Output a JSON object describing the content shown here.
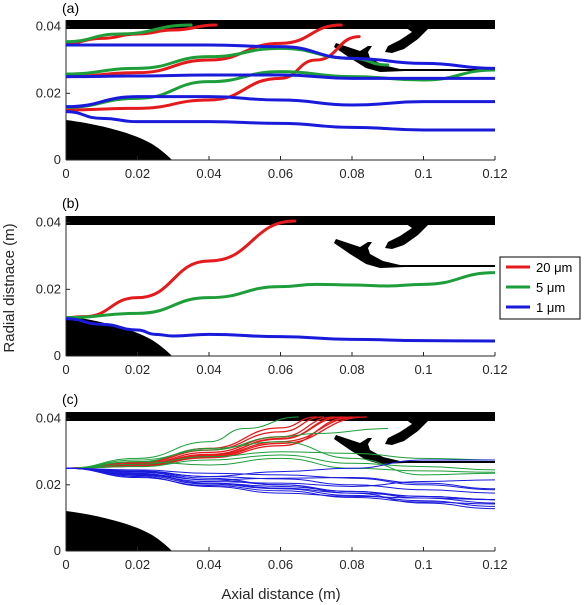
{
  "chart_data": {
    "type": "line",
    "xlabel": "Axial distance (m)",
    "ylabel": "Radial distnace (m)",
    "xlim": [
      0,
      0.12
    ],
    "ylim": [
      0,
      0.042
    ],
    "x_ticks": [
      "0",
      "0.02",
      "0.04",
      "0.06",
      "0.08",
      "0.1",
      "0.12"
    ],
    "y_ticks": [
      "0",
      "0.02",
      "0.04"
    ],
    "legend": {
      "placement": "right of panel (b)",
      "entries": [
        {
          "label": "20 μm",
          "color": "#e41a1c"
        },
        {
          "label": "5 μm",
          "color": "#1e9e3a"
        },
        {
          "label": "1 μm",
          "color": "#1a1adb"
        }
      ]
    },
    "colors": {
      "20um": "#e41a1c",
      "5um": "#1e9e3a",
      "1um": "#1a1adb",
      "geometry": "#000000"
    },
    "panels": [
      {
        "label": "(a)",
        "series": [
          {
            "size": "20um",
            "x": [
              0,
              0.01,
              0.02,
              0.03,
              0.042
            ],
            "y": [
              0.035,
              0.0365,
              0.0378,
              0.039,
              0.0405
            ]
          },
          {
            "size": "20um",
            "x": [
              0,
              0.02,
              0.04,
              0.06,
              0.077
            ],
            "y": [
              0.025,
              0.0262,
              0.03,
              0.035,
              0.0405
            ]
          },
          {
            "size": "20um",
            "x": [
              0,
              0.02,
              0.04,
              0.06,
              0.07,
              0.082
            ],
            "y": [
              0.015,
              0.0155,
              0.018,
              0.0245,
              0.03,
              0.037
            ]
          },
          {
            "size": "5um",
            "x": [
              0,
              0.015,
              0.035
            ],
            "y": [
              0.0355,
              0.0378,
              0.0405
            ]
          },
          {
            "size": "5um",
            "x": [
              0,
              0.02,
              0.04,
              0.06,
              0.08,
              0.09
            ],
            "y": [
              0.0258,
              0.0275,
              0.031,
              0.0335,
              0.0305,
              0.0285
            ]
          },
          {
            "size": "5um",
            "x": [
              0,
              0.02,
              0.04,
              0.06,
              0.08,
              0.1,
              0.12
            ],
            "y": [
              0.0158,
              0.0185,
              0.0235,
              0.0265,
              0.025,
              0.024,
              0.027
            ]
          },
          {
            "size": "1um",
            "x": [
              0,
              0.02,
              0.04,
              0.06,
              0.08,
              0.1,
              0.12
            ],
            "y": [
              0.0345,
              0.0345,
              0.0345,
              0.034,
              0.0305,
              0.029,
              0.0275
            ]
          },
          {
            "size": "1um",
            "x": [
              0,
              0.02,
              0.04,
              0.06,
              0.08,
              0.1,
              0.12
            ],
            "y": [
              0.025,
              0.0252,
              0.0255,
              0.0255,
              0.0245,
              0.0245,
              0.0245
            ]
          },
          {
            "size": "1um",
            "x": [
              0,
              0.02,
              0.04,
              0.06,
              0.08,
              0.1,
              0.12
            ],
            "y": [
              0.016,
              0.019,
              0.019,
              0.018,
              0.0165,
              0.0175,
              0.0175
            ]
          },
          {
            "size": "1um",
            "x": [
              0,
              0.01,
              0.02,
              0.04,
              0.06,
              0.08,
              0.1,
              0.12
            ],
            "y": [
              0.0145,
              0.0125,
              0.0115,
              0.0115,
              0.011,
              0.0098,
              0.009,
              0.009
            ]
          }
        ]
      },
      {
        "label": "(b)",
        "series": [
          {
            "size": "20um",
            "x": [
              0,
              0.005,
              0.02,
              0.04,
              0.064
            ],
            "y": [
              0.0115,
              0.0118,
              0.0175,
              0.0285,
              0.0405
            ]
          },
          {
            "size": "5um",
            "x": [
              0,
              0.02,
              0.04,
              0.06,
              0.07,
              0.08,
              0.09,
              0.1,
              0.12
            ],
            "y": [
              0.0115,
              0.0128,
              0.0175,
              0.0208,
              0.0215,
              0.0213,
              0.021,
              0.0215,
              0.025
            ]
          },
          {
            "size": "1um",
            "x": [
              0,
              0.01,
              0.02,
              0.025,
              0.03,
              0.04,
              0.06,
              0.08,
              0.1,
              0.12
            ],
            "y": [
              0.0112,
              0.0095,
              0.0078,
              0.0065,
              0.006,
              0.0065,
              0.0058,
              0.005,
              0.0046,
              0.0045
            ]
          }
        ]
      },
      {
        "label": "(c)",
        "series": [
          {
            "size": "20um",
            "x": [
              0,
              0.02,
              0.04,
              0.06,
              0.078
            ],
            "y": [
              0.025,
              0.026,
              0.029,
              0.034,
              0.0405
            ]
          },
          {
            "size": "20um",
            "x": [
              0,
              0.02,
              0.04,
              0.06,
              0.072
            ],
            "y": [
              0.025,
              0.0265,
              0.0305,
              0.036,
              0.0405
            ]
          },
          {
            "size": "20um",
            "x": [
              0,
              0.02,
              0.04,
              0.06,
              0.084
            ],
            "y": [
              0.025,
              0.0258,
              0.0285,
              0.0325,
              0.0405
            ]
          },
          {
            "size": "20um",
            "x": [
              0,
              0.02,
              0.04,
              0.06,
              0.075
            ],
            "y": [
              0.025,
              0.0262,
              0.0298,
              0.0345,
              0.0405
            ]
          },
          {
            "size": "20um",
            "x": [
              0,
              0.02,
              0.04,
              0.06,
              0.08
            ],
            "y": [
              0.025,
              0.0256,
              0.0282,
              0.0318,
              0.0405
            ]
          },
          {
            "size": "20um",
            "x": [
              0,
              0.02,
              0.04,
              0.06,
              0.07
            ],
            "y": [
              0.025,
              0.0268,
              0.031,
              0.0372,
              0.0405
            ]
          },
          {
            "size": "20um",
            "x": [
              0,
              0.02,
              0.04,
              0.06,
              0.077
            ],
            "y": [
              0.025,
              0.026,
              0.0292,
              0.0338,
              0.0405
            ]
          },
          {
            "size": "20um",
            "x": [
              0,
              0.02,
              0.04,
              0.06,
              0.082
            ],
            "y": [
              0.025,
              0.0257,
              0.0288,
              0.033,
              0.0405
            ]
          },
          {
            "size": "5um",
            "x": [
              0,
              0.02,
              0.04,
              0.05,
              0.065
            ],
            "y": [
              0.025,
              0.028,
              0.033,
              0.037,
              0.0405
            ]
          },
          {
            "size": "5um",
            "x": [
              0,
              0.02,
              0.04,
              0.06,
              0.08,
              0.1,
              0.12
            ],
            "y": [
              0.025,
              0.027,
              0.031,
              0.033,
              0.028,
              0.023,
              0.0235
            ]
          },
          {
            "size": "5um",
            "x": [
              0,
              0.02,
              0.04,
              0.06,
              0.07,
              0.09
            ],
            "y": [
              0.025,
              0.0275,
              0.0305,
              0.0345,
              0.0355,
              0.037
            ]
          },
          {
            "size": "5um",
            "x": [
              0,
              0.02,
              0.04,
              0.06,
              0.08,
              0.1,
              0.12
            ],
            "y": [
              0.025,
              0.0262,
              0.0285,
              0.03,
              0.0295,
              0.028,
              0.0275
            ]
          },
          {
            "size": "5um",
            "x": [
              0,
              0.02,
              0.04,
              0.06,
              0.08,
              0.1,
              0.12
            ],
            "y": [
              0.025,
              0.0255,
              0.0275,
              0.029,
              0.0265,
              0.0255,
              0.0245
            ]
          },
          {
            "size": "5um",
            "x": [
              0,
              0.02,
              0.04,
              0.06,
              0.08,
              0.1,
              0.12
            ],
            "y": [
              0.025,
              0.027,
              0.026,
              0.028,
              0.025,
              0.0242,
              0.0238
            ]
          },
          {
            "size": "1um",
            "x": [
              0,
              0.02,
              0.04,
              0.06,
              0.08,
              0.1,
              0.12
            ],
            "y": [
              0.025,
              0.024,
              0.0225,
              0.024,
              0.025,
              0.0275,
              0.0275
            ]
          },
          {
            "size": "1um",
            "x": [
              0,
              0.02,
              0.04,
              0.06,
              0.08,
              0.1,
              0.12
            ],
            "y": [
              0.025,
              0.023,
              0.021,
              0.0205,
              0.0195,
              0.021,
              0.0215
            ]
          },
          {
            "size": "1um",
            "x": [
              0,
              0.02,
              0.04,
              0.06,
              0.08,
              0.1,
              0.12
            ],
            "y": [
              0.025,
              0.0225,
              0.0195,
              0.0175,
              0.0165,
              0.016,
              0.0155
            ]
          },
          {
            "size": "1um",
            "x": [
              0,
              0.02,
              0.04,
              0.06,
              0.08,
              0.1,
              0.12
            ],
            "y": [
              0.025,
              0.024,
              0.022,
              0.02,
              0.018,
              0.016,
              0.0145
            ]
          },
          {
            "size": "1um",
            "x": [
              0,
              0.02,
              0.04,
              0.06,
              0.08,
              0.1,
              0.12
            ],
            "y": [
              0.025,
              0.0238,
              0.0215,
              0.02,
              0.0175,
              0.0165,
              0.0155
            ]
          },
          {
            "size": "1um",
            "x": [
              0,
              0.02,
              0.04,
              0.06,
              0.08,
              0.1,
              0.12
            ],
            "y": [
              0.025,
              0.0232,
              0.0205,
              0.019,
              0.0175,
              0.0145,
              0.0128
            ]
          },
          {
            "size": "1um",
            "x": [
              0,
              0.02,
              0.04,
              0.06,
              0.08,
              0.1,
              0.12
            ],
            "y": [
              0.025,
              0.0228,
              0.0202,
              0.0188,
              0.0168,
              0.0152,
              0.0135
            ]
          },
          {
            "size": "1um",
            "x": [
              0,
              0.02,
              0.04,
              0.06,
              0.08,
              0.1,
              0.12
            ],
            "y": [
              0.025,
              0.0242,
              0.0225,
              0.0218,
              0.02,
              0.0185,
              0.0175
            ]
          },
          {
            "size": "1um",
            "x": [
              0,
              0.02,
              0.04,
              0.06,
              0.08,
              0.1,
              0.12
            ],
            "y": [
              0.025,
              0.0235,
              0.0205,
              0.0195,
              0.018,
              0.0165,
              0.0155
            ]
          },
          {
            "size": "1um",
            "x": [
              0,
              0.02,
              0.04,
              0.06,
              0.08,
              0.1,
              0.12
            ],
            "y": [
              0.025,
              0.0222,
              0.0198,
              0.0182,
              0.0162,
              0.0148,
              0.0142
            ]
          },
          {
            "size": "1um",
            "x": [
              0,
              0.02,
              0.04,
              0.06,
              0.08,
              0.1,
              0.12
            ],
            "y": [
              0.025,
              0.0245,
              0.0235,
              0.023,
              0.022,
              0.02,
              0.0185
            ]
          },
          {
            "size": "1um",
            "x": [
              0,
              0.02,
              0.04,
              0.06,
              0.08,
              0.1,
              0.12
            ],
            "y": [
              0.025,
              0.0233,
              0.0215,
              0.022,
              0.0222,
              0.0205,
              0.0188
            ]
          }
        ]
      }
    ]
  }
}
